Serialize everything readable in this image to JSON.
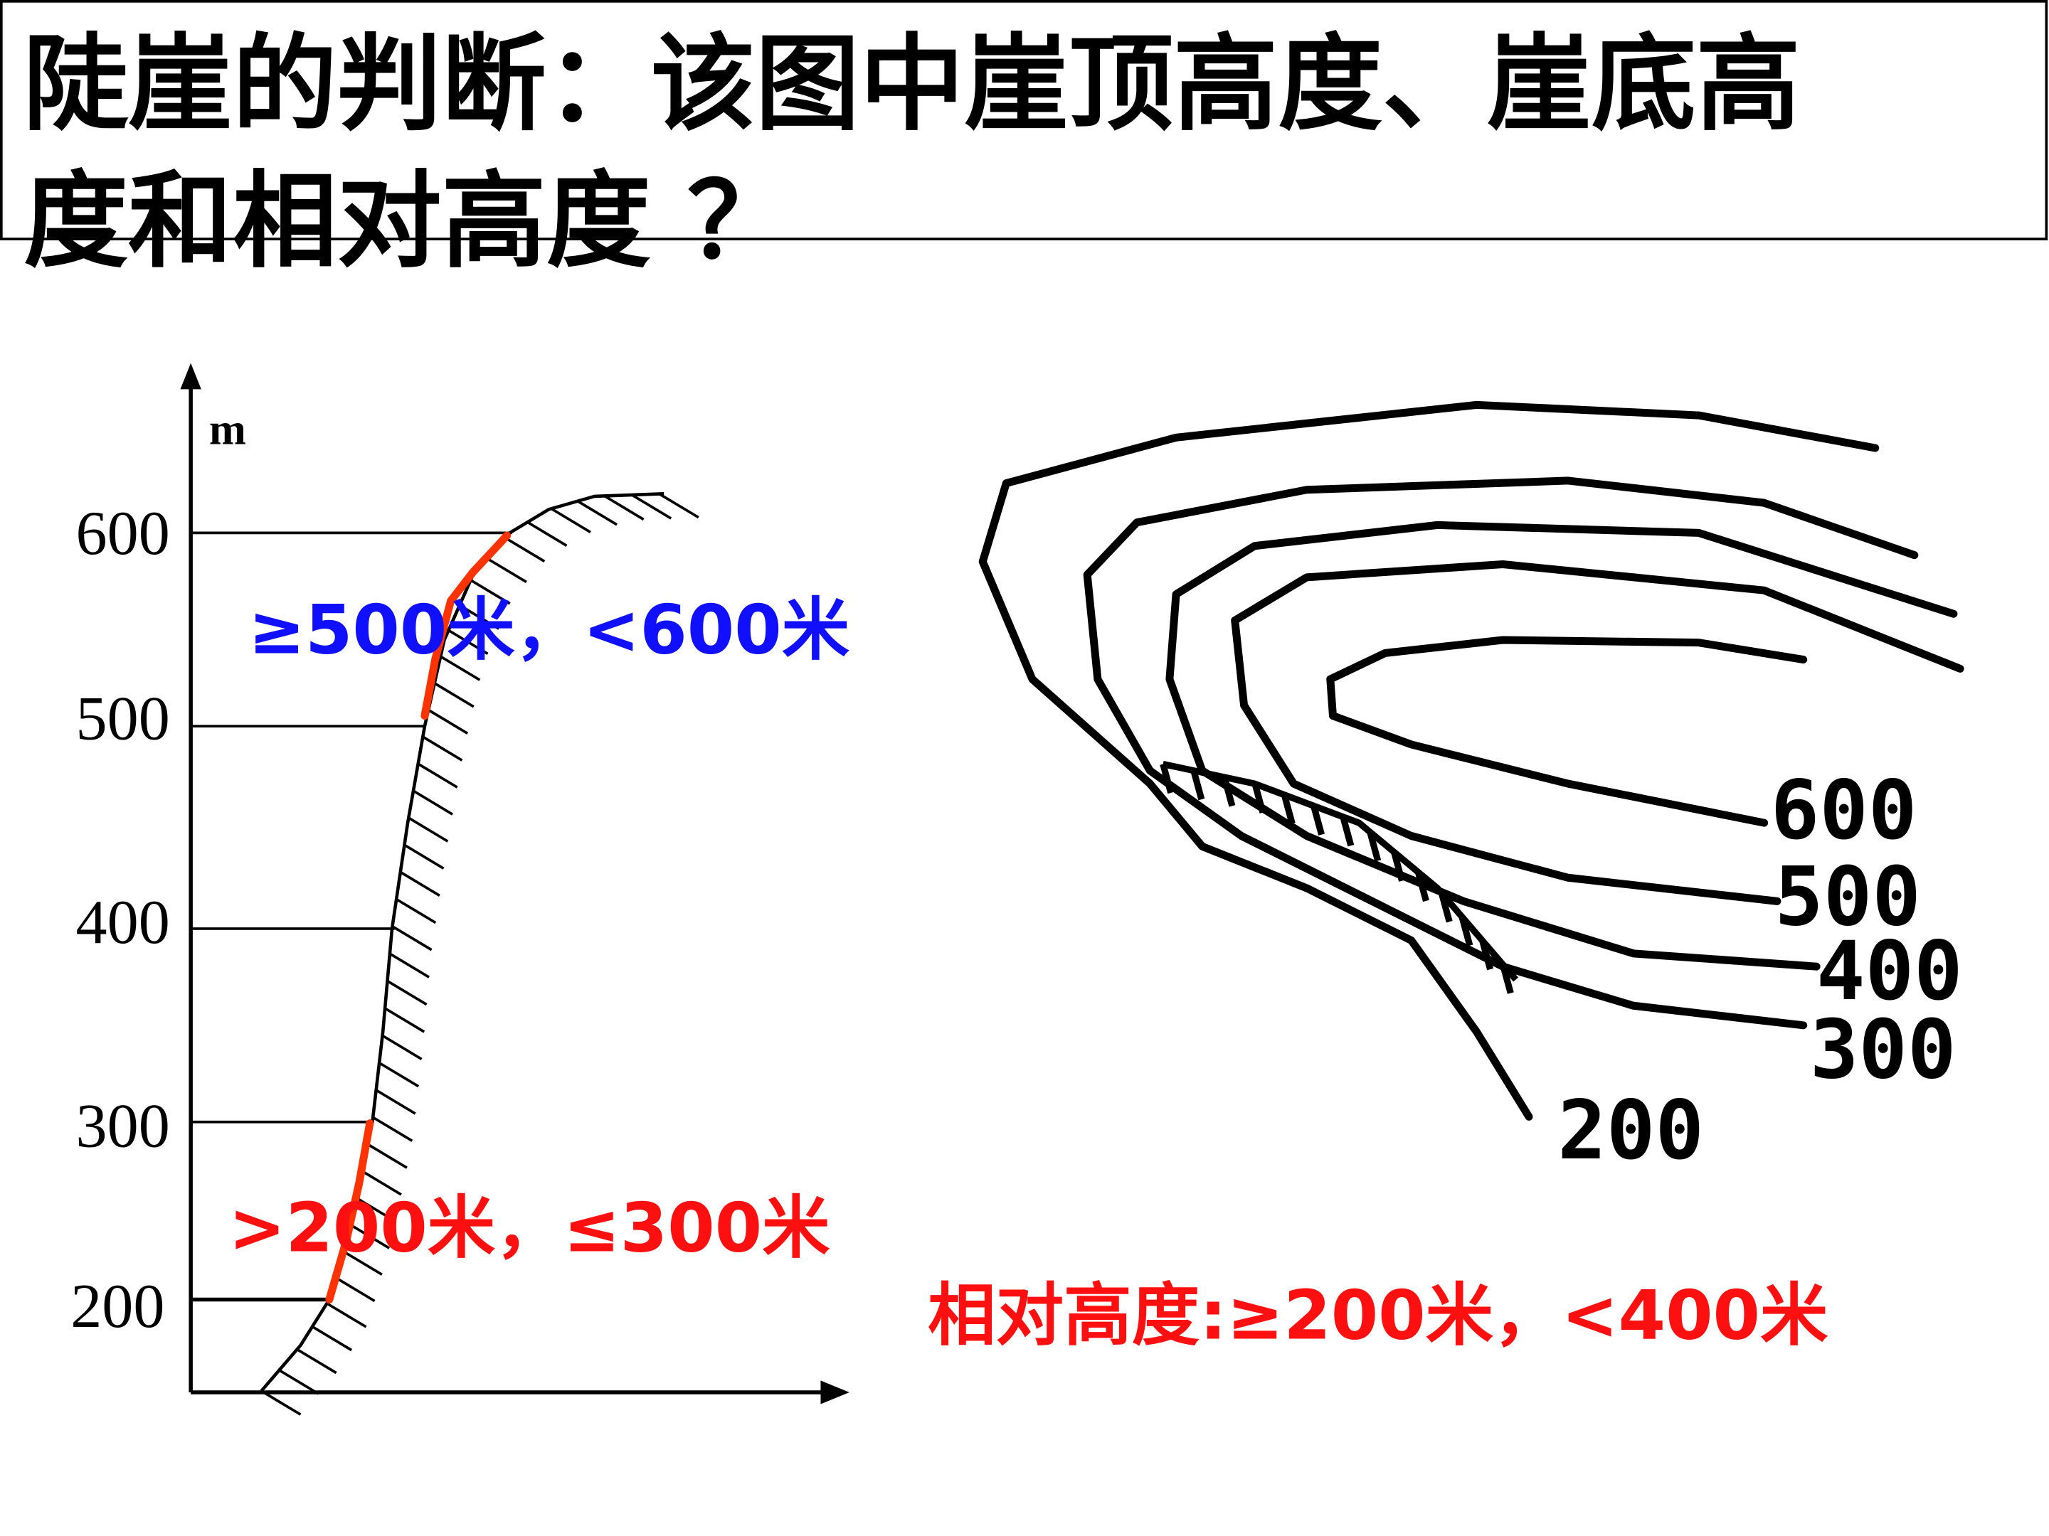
{
  "title": [
    "陡崖的判断：该图中崖顶高度、崖底高",
    "度和相对高度 ？"
  ],
  "profile": {
    "unit": "m",
    "axis_labels": [
      "600",
      "500",
      "400",
      "300",
      "200"
    ]
  },
  "annotations": {
    "cliff_top": "≥500米，<600米",
    "cliff_bottom": ">200米，≤300米",
    "relative_height": "相对高度:≥200米，<400米"
  },
  "contour_labels": [
    "600",
    "500",
    "400",
    "300",
    "200"
  ]
}
